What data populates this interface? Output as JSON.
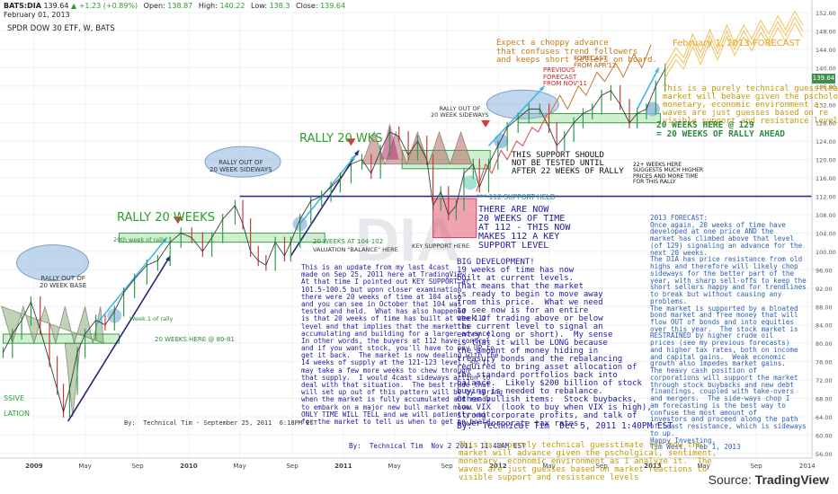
{
  "header": {
    "symbol": "BATS:DIA",
    "last": "139.64",
    "change": "+1.23 (+0.89%)",
    "open_label": "Open:",
    "open": "138.87",
    "high_label": "High:",
    "high": "140.22",
    "low_label": "Low:",
    "low": "138.3",
    "close_label": "Close:",
    "close": "139.64",
    "date": "February 01, 2013",
    "title": "SPDR DOW 30 ETF, W, BATS"
  },
  "watermark": "DIA",
  "source_label": "Source:",
  "source_site": "TradingView",
  "price_tag": "139.64",
  "chart_data": {
    "type": "line",
    "ylim": [
      55,
      152
    ],
    "price_ticks": [
      56,
      60,
      64,
      68,
      72,
      76,
      80,
      84,
      88,
      92,
      96,
      100,
      104,
      108,
      112,
      116,
      120,
      124,
      128,
      132,
      136,
      140,
      144,
      148,
      152
    ],
    "x_ticks": [
      {
        "label": "2009",
        "t": 2009.0,
        "bold": true
      },
      {
        "label": "May",
        "t": 2009.33
      },
      {
        "label": "Sep",
        "t": 2009.67
      },
      {
        "label": "2010",
        "t": 2010.0,
        "bold": true
      },
      {
        "label": "May",
        "t": 2010.33
      },
      {
        "label": "Sep",
        "t": 2010.67
      },
      {
        "label": "2011",
        "t": 2011.0,
        "bold": true
      },
      {
        "label": "May",
        "t": 2011.33
      },
      {
        "label": "Sep",
        "t": 2011.67
      },
      {
        "label": "2012",
        "t": 2012.0,
        "bold": true
      },
      {
        "label": "May",
        "t": 2012.33
      },
      {
        "label": "Sep",
        "t": 2012.67
      },
      {
        "label": "2013",
        "t": 2013.0,
        "bold": true
      },
      {
        "label": "May",
        "t": 2013.33
      },
      {
        "label": "Sep",
        "t": 2013.67
      },
      {
        "label": "2014",
        "t": 2014.0
      }
    ],
    "price_series": [
      {
        "t": 2008.8,
        "v": 78
      },
      {
        "t": 2008.86,
        "v": 82
      },
      {
        "t": 2008.92,
        "v": 85
      },
      {
        "t": 2008.98,
        "v": 89
      },
      {
        "t": 2009.04,
        "v": 83
      },
      {
        "t": 2009.1,
        "v": 76
      },
      {
        "t": 2009.15,
        "v": 70
      },
      {
        "t": 2009.19,
        "v": 65
      },
      {
        "t": 2009.23,
        "v": 70
      },
      {
        "t": 2009.28,
        "v": 78
      },
      {
        "t": 2009.33,
        "v": 82
      },
      {
        "t": 2009.4,
        "v": 85
      },
      {
        "t": 2009.46,
        "v": 84
      },
      {
        "t": 2009.52,
        "v": 87
      },
      {
        "t": 2009.58,
        "v": 91
      },
      {
        "t": 2009.65,
        "v": 94
      },
      {
        "t": 2009.73,
        "v": 97
      },
      {
        "t": 2009.8,
        "v": 98
      },
      {
        "t": 2009.88,
        "v": 102
      },
      {
        "t": 2009.95,
        "v": 104
      },
      {
        "t": 2010.02,
        "v": 103
      },
      {
        "t": 2010.09,
        "v": 100
      },
      {
        "t": 2010.15,
        "v": 103
      },
      {
        "t": 2010.22,
        "v": 107
      },
      {
        "t": 2010.3,
        "v": 110
      },
      {
        "t": 2010.35,
        "v": 106
      },
      {
        "t": 2010.4,
        "v": 100
      },
      {
        "t": 2010.45,
        "v": 98
      },
      {
        "t": 2010.5,
        "v": 97
      },
      {
        "t": 2010.56,
        "v": 102
      },
      {
        "t": 2010.62,
        "v": 99
      },
      {
        "t": 2010.66,
        "v": 102
      },
      {
        "t": 2010.72,
        "v": 107
      },
      {
        "t": 2010.79,
        "v": 111
      },
      {
        "t": 2010.86,
        "v": 112
      },
      {
        "t": 2010.92,
        "v": 114
      },
      {
        "t": 2010.98,
        "v": 116
      },
      {
        "t": 2011.05,
        "v": 119
      },
      {
        "t": 2011.12,
        "v": 120
      },
      {
        "t": 2011.18,
        "v": 117
      },
      {
        "t": 2011.24,
        "v": 122
      },
      {
        "t": 2011.3,
        "v": 126
      },
      {
        "t": 2011.36,
        "v": 125
      },
      {
        "t": 2011.42,
        "v": 121
      },
      {
        "t": 2011.48,
        "v": 124
      },
      {
        "t": 2011.54,
        "v": 120
      },
      {
        "t": 2011.58,
        "v": 110
      },
      {
        "t": 2011.63,
        "v": 113
      },
      {
        "t": 2011.68,
        "v": 108
      },
      {
        "t": 2011.73,
        "v": 110
      },
      {
        "t": 2011.78,
        "v": 117
      },
      {
        "t": 2011.84,
        "v": 119
      },
      {
        "t": 2011.88,
        "v": 114
      },
      {
        "t": 2011.94,
        "v": 119
      },
      {
        "t": 2012.0,
        "v": 123
      },
      {
        "t": 2012.06,
        "v": 127
      },
      {
        "t": 2012.13,
        "v": 129
      },
      {
        "t": 2012.2,
        "v": 131
      },
      {
        "t": 2012.27,
        "v": 131
      },
      {
        "t": 2012.33,
        "v": 127
      },
      {
        "t": 2012.38,
        "v": 123
      },
      {
        "t": 2012.43,
        "v": 125
      },
      {
        "t": 2012.49,
        "v": 128
      },
      {
        "t": 2012.55,
        "v": 130
      },
      {
        "t": 2012.61,
        "v": 131
      },
      {
        "t": 2012.67,
        "v": 134
      },
      {
        "t": 2012.73,
        "v": 135
      },
      {
        "t": 2012.79,
        "v": 132
      },
      {
        "t": 2012.85,
        "v": 128
      },
      {
        "t": 2012.9,
        "v": 130
      },
      {
        "t": 2012.96,
        "v": 131
      },
      {
        "t": 2013.02,
        "v": 136
      },
      {
        "t": 2013.08,
        "v": 139.64
      }
    ],
    "forecast_nov11": [
      {
        "t": 2011.86,
        "v": 113
      },
      {
        "t": 2011.92,
        "v": 119
      },
      {
        "t": 2011.96,
        "v": 117
      },
      {
        "t": 2012.02,
        "v": 122
      },
      {
        "t": 2012.06,
        "v": 120
      },
      {
        "t": 2012.12,
        "v": 124
      },
      {
        "t": 2012.16,
        "v": 123
      },
      {
        "t": 2012.22,
        "v": 127
      },
      {
        "t": 2012.26,
        "v": 126
      },
      {
        "t": 2012.32,
        "v": 130
      }
    ],
    "forecast_apr12": [
      {
        "t": 2012.32,
        "v": 129
      },
      {
        "t": 2012.4,
        "v": 134
      },
      {
        "t": 2012.45,
        "v": 131
      },
      {
        "t": 2012.52,
        "v": 136
      },
      {
        "t": 2012.57,
        "v": 134
      },
      {
        "t": 2012.64,
        "v": 139
      },
      {
        "t": 2012.69,
        "v": 137
      },
      {
        "t": 2012.76,
        "v": 141
      },
      {
        "t": 2012.81,
        "v": 138
      },
      {
        "t": 2012.88,
        "v": 143
      },
      {
        "t": 2012.93,
        "v": 140
      },
      {
        "t": 2012.99,
        "v": 145
      }
    ],
    "forecast_feb13": [
      {
        "t": 2013.08,
        "v": 139
      },
      {
        "t": 2013.15,
        "v": 143
      },
      {
        "t": 2013.2,
        "v": 141
      },
      {
        "t": 2013.26,
        "v": 146
      },
      {
        "t": 2013.31,
        "v": 142
      },
      {
        "t": 2013.37,
        "v": 147
      },
      {
        "t": 2013.42,
        "v": 143
      },
      {
        "t": 2013.48,
        "v": 148
      },
      {
        "t": 2013.53,
        "v": 144
      },
      {
        "t": 2013.59,
        "v": 148
      },
      {
        "t": 2013.64,
        "v": 145
      },
      {
        "t": 2013.7,
        "v": 149
      },
      {
        "t": 2013.75,
        "v": 146
      },
      {
        "t": 2013.81,
        "v": 150
      },
      {
        "t": 2013.86,
        "v": 147
      },
      {
        "t": 2013.92,
        "v": 151
      },
      {
        "t": 2013.97,
        "v": 148
      }
    ],
    "support_line": {
      "value": 112,
      "label": "*** 112 SUPPORT HELD"
    },
    "zones": [
      {
        "t0": 2008.8,
        "t1": 2009.55,
        "v0": 80,
        "v1": 82,
        "label": "20 WEEKS HERE @ 80-81"
      },
      {
        "t0": 2009.55,
        "t1": 2010.88,
        "v0": 102,
        "v1": 104,
        "label": "20 WEEKS AT 104-102"
      },
      {
        "t0": 2011.38,
        "t1": 2011.95,
        "v0": 118,
        "v1": 122,
        "label": ""
      },
      {
        "t0": 2012.13,
        "t1": 2013.05,
        "v0": 128,
        "v1": 130,
        "label": "20 WEEKS HERE @ 129"
      }
    ]
  },
  "annotations": {
    "rally_left": "RALLY 20 WEEKS",
    "rally_mid": "RALLY 20 WKS",
    "week20": "20th week of rally",
    "week1": "Week 1 of rally",
    "valuation": "VALUATION \"BALANCE\" HERE",
    "key_support": "KEY SUPPORT HERE",
    "massive": "SSIVE\n\nLATION",
    "ellipse_base": "RALLY OUT OF\n20 WEEK BASE",
    "ellipse_sideways_2010": "RALLY OUT OF\n20 WEEK SIDEWAYS",
    "ellipse_sideways_2012": "RALLY OUT OF\n20 WEEK SIDEWAYS",
    "update_sep": "This is an update from my last 4cast\nmade on Sep 25, 2011 here at TradingView\nAt that time I pointed out KEY SUPPORT at\n101.5-100.5 but upon closer examination\nthere were 20 weeks of time at 104 also\nand you can see in October that 104 was\ntested and held.  What has also happened\nis that 20 weeks of time has built at the 112\nlevel and that implies that the market is\naccumulating and building for a larger advance.\nIn other words, the buyers at 112 have control\nand if you want stock, you'll have to pay UP to\nget it back.  The market is now dealing with the\n14 weeks of supply at the 121-123 level, so it\nmay take a few more weeks to chew through\nthat supply.  I would 4cast sideways action to\ndeal with that situation.  The best trade that\nwill set up out of this pattern will be by spring\nwhen the market is fully accumulated and ready\nto embark on a major new bull market move.\nONLY TIME WILL TELL and we will patiently wait\nfor the market to tell us when to get on board.",
    "by_sep": "By:  Technical Tim - September 25, 2011  6:18PM EST",
    "by_nov": "By:  Technical Tim  Nov 2 2011  11:48AM EST",
    "time_now": "THERE ARE NOW\n20 WEEKS OF TIME\nAT 112 - THIS NOW\nMAKES 112 A KEY\nSUPPORT LEVEL",
    "big_dev": "BIG DEVELOPMENT!\n19 weeks of time has now\nbuilt at current levels.\nThat means that the market\nis ready to begin to move away\nfrom this price.  What we need\nto see now is for an entire\nweek of trading above or below\nthe current level to signal an\nentry (long or short).  My sense\nis that it will be LONG because\nthe amount of money hiding in\ntreasury bonds and the rebalancing\nrequired to bring asset allocation of\nthe standard portfolios back into\nbalance.  Likely $200 billion of stock\nbuying is needed to rebalance.\nOther bullish items:  Stock buybacks,\nlow VIX  (look to buy when VIX is high),\nstrong corporate profits, and talk of\nlower corporate tax rates.",
    "by_dec": "By:  Technical Tim  Dec 5, 2011 1:40PM EST",
    "this_support": "THIS SUPPORT SHOULD\nNOT BE TESTED UNTIL\nAFTER 22 WEEKS OF RALLY",
    "weeks22": "22+ WEEKS HERE\nSUGGESTS MUCH HIGHER\nPRICES AND MORE TIME\nFOR THIS RALLY",
    "choppy": "Expect a choppy advance\nthat confuses trend followers\nand keeps short sellers on board.",
    "prev_forecast": "PREVIOUS\nFORECAST\nFROM NOV'11",
    "forecast_apr": "FORECAST\nFROM APR'12",
    "feb_forecast": "February 1, 2013 FORECAST",
    "purely_top": "This is a purely technical guesstima\nmarket will behave given the pscholo\nmonetary, economic environment a\nwaves are just guesses based on re\nvisible support and resistance level",
    "weeks129": "20 WEEKS HERE @ 129\n= 20 WEEKS OF RALLY AHEAD",
    "forecast2013": "2013 FORECAST:\nOnce again, 20 weeks of time have\ndeveloped at one price AND the\nmarket has climbed above that level\n(of 129) signaling an advance for the\nnext 20 weeks.\nThe DIA has price resistance from old\nhighs and therefore will likely chop\nsideways for the better part of the\nyear, with sharp sell-offs to keep the\nshort sellers happy and for trendlines\nto break but without causing any\nproblems.\nThe market is supported by a bloated\nbond market and free money that will\nflow OUT of bonds and into equities\nover this year.  The stock market is\nRESTRAINED by higher crude oil\nprices (see my previous forecasts)\nand higher tax rates, both on income\nand capital gains.  Weak economic\ngrowth also impedes market gains.\nThe heavy cash position of\ncorporations will support the market\nthrough stock buybacks and new debt\nfinancings, coupled with take-overs\nand mergers.  The side-ways chop I\nam forecasting is the best way to\nconfuse the most amount of\ninvestors and proceed along the path\nof least resistance, which is sideways\nto up.\nHappy Investing,\nTim West,  Feb 1, 2013",
    "purely_bottom": "This is a purely technical guesstimate for how the\nmarket will advance given the pscholgical, sentiment,\nmonetary, economic environment as I analyze it.  The\nwaves are just guesses based on market reactions to\nvisible support and resistance levels"
  }
}
